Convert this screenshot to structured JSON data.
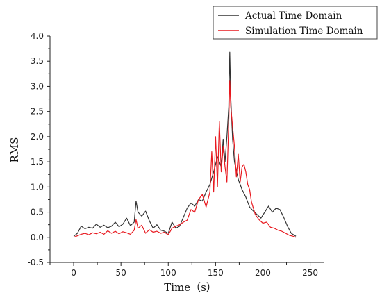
{
  "chart_data": {
    "type": "line",
    "xlabel": "Time（s）",
    "ylabel": "RMS",
    "xlim": [
      -25,
      265
    ],
    "ylim": [
      -0.5,
      4.0
    ],
    "x_ticks": [
      0,
      50,
      100,
      150,
      200,
      250
    ],
    "y_ticks": [
      -0.5,
      0.0,
      0.5,
      1.0,
      1.5,
      2.0,
      2.5,
      3.0,
      3.5,
      4.0
    ],
    "x_tick_labels": [
      "0",
      "50",
      "100",
      "150",
      "200",
      "250"
    ],
    "y_tick_labels": [
      "-0.5",
      "0.0",
      "0.5",
      "1.0",
      "1.5",
      "2.0",
      "2.5",
      "3.0",
      "3.5",
      "4.0"
    ],
    "legend_position": "top-right",
    "grid": false,
    "series": [
      {
        "name": "Actual Time Domain",
        "color": "#333333",
        "x": [
          0,
          4,
          8,
          12,
          16,
          20,
          24,
          28,
          32,
          36,
          40,
          44,
          48,
          52,
          56,
          60,
          64,
          66,
          68,
          72,
          76,
          80,
          84,
          88,
          92,
          96,
          100,
          104,
          108,
          112,
          116,
          120,
          124,
          128,
          132,
          136,
          140,
          144,
          148,
          152,
          156,
          158,
          160,
          162,
          164,
          165,
          166,
          168,
          170,
          174,
          178,
          182,
          186,
          190,
          194,
          198,
          202,
          206,
          210,
          214,
          218,
          222,
          226,
          230,
          235
        ],
        "values": [
          0.02,
          0.08,
          0.22,
          0.17,
          0.2,
          0.18,
          0.26,
          0.2,
          0.24,
          0.19,
          0.22,
          0.3,
          0.21,
          0.26,
          0.38,
          0.23,
          0.3,
          0.72,
          0.5,
          0.42,
          0.52,
          0.33,
          0.18,
          0.25,
          0.14,
          0.12,
          0.08,
          0.3,
          0.18,
          0.22,
          0.4,
          0.58,
          0.68,
          0.62,
          0.75,
          0.72,
          0.9,
          1.05,
          1.3,
          1.6,
          1.4,
          1.95,
          1.5,
          2.0,
          2.6,
          3.68,
          2.8,
          1.95,
          1.5,
          1.15,
          0.95,
          0.8,
          0.6,
          0.52,
          0.45,
          0.38,
          0.5,
          0.62,
          0.5,
          0.58,
          0.55,
          0.4,
          0.22,
          0.08,
          0.02
        ]
      },
      {
        "name": "Simulation Time Domain",
        "color": "#e8191f",
        "x": [
          0,
          4,
          8,
          12,
          16,
          20,
          24,
          28,
          32,
          36,
          40,
          44,
          48,
          52,
          56,
          60,
          64,
          66,
          68,
          72,
          76,
          80,
          84,
          88,
          92,
          96,
          100,
          104,
          108,
          112,
          116,
          120,
          124,
          128,
          132,
          136,
          140,
          144,
          146,
          148,
          150,
          152,
          154,
          156,
          158,
          160,
          162,
          164,
          165,
          166,
          168,
          170,
          172,
          174,
          176,
          178,
          180,
          182,
          184,
          186,
          188,
          192,
          196,
          200,
          204,
          208,
          212,
          216,
          220,
          224,
          228,
          232,
          235
        ],
        "values": [
          0.0,
          0.03,
          0.06,
          0.08,
          0.05,
          0.09,
          0.07,
          0.1,
          0.06,
          0.13,
          0.08,
          0.12,
          0.07,
          0.11,
          0.09,
          0.06,
          0.14,
          0.35,
          0.18,
          0.24,
          0.08,
          0.15,
          0.1,
          0.12,
          0.08,
          0.1,
          0.05,
          0.18,
          0.22,
          0.25,
          0.3,
          0.34,
          0.55,
          0.5,
          0.75,
          0.85,
          0.6,
          0.9,
          1.7,
          0.9,
          2.0,
          1.0,
          2.3,
          1.3,
          1.8,
          1.4,
          1.1,
          2.3,
          3.12,
          2.6,
          2.2,
          1.8,
          1.2,
          1.65,
          1.1,
          1.4,
          1.45,
          1.3,
          1.05,
          0.95,
          0.7,
          0.45,
          0.35,
          0.28,
          0.3,
          0.2,
          0.18,
          0.14,
          0.12,
          0.08,
          0.04,
          0.02,
          0.0
        ]
      }
    ]
  }
}
